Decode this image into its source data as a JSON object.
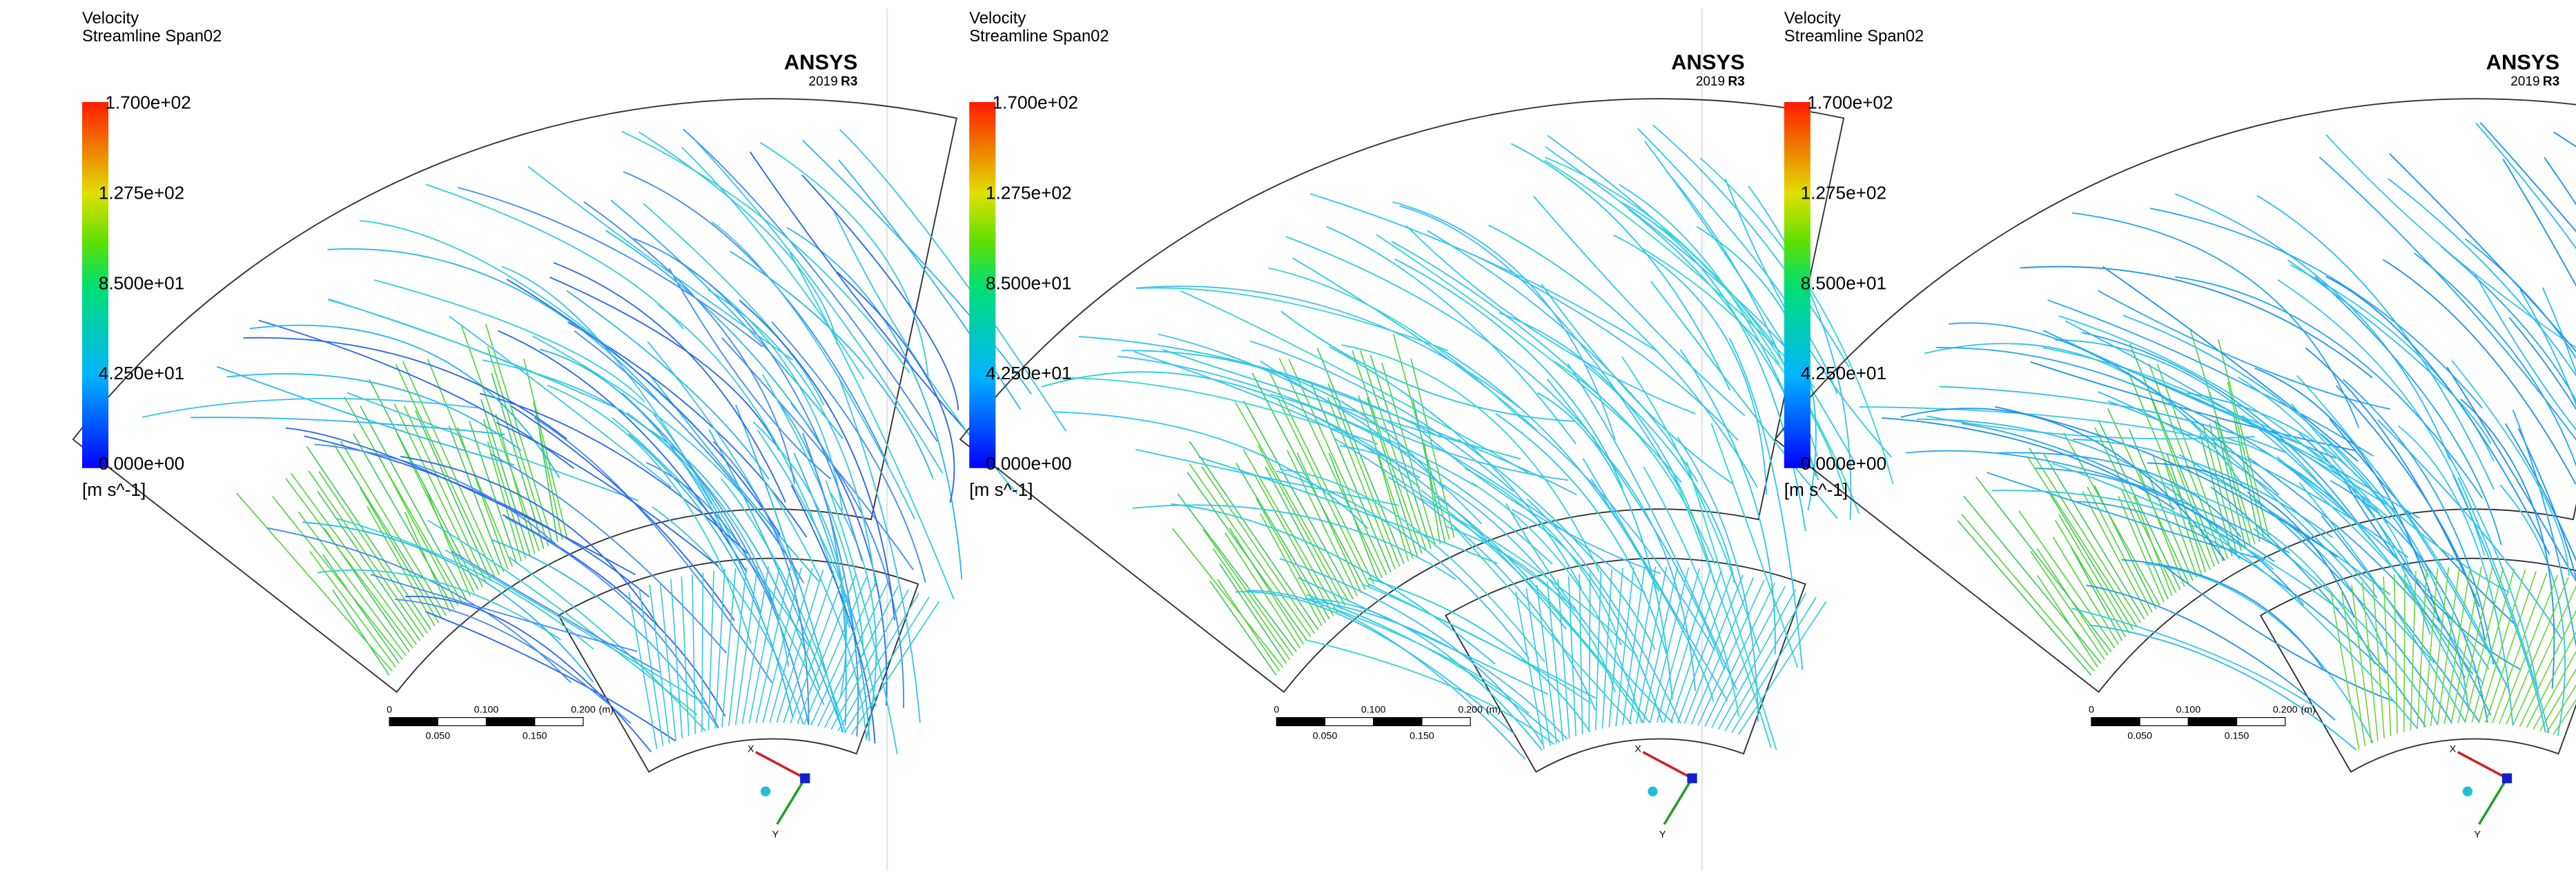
{
  "panels": [
    {
      "legend": {
        "title": "Velocity",
        "subtitle": "Streamline Span02",
        "ticks": [
          "1.700e+02",
          "1.275e+02",
          "8.500e+01",
          "4.250e+01",
          "0.000e+00"
        ],
        "units": "[m s^-1]"
      },
      "logo": {
        "brand": "ANSYS",
        "year": "2019",
        "release": "R3"
      },
      "scale": {
        "top": [
          "0",
          "0.100",
          "0.200",
          "(m)"
        ],
        "bottom": [
          "0.050",
          "0.150"
        ]
      },
      "triad": {
        "x": "X",
        "y": "Y"
      }
    },
    {
      "legend": {
        "title": "Velocity",
        "subtitle": "Streamline Span02",
        "ticks": [
          "1.700e+02",
          "1.275e+02",
          "8.500e+01",
          "4.250e+01",
          "0.000e+00"
        ],
        "units": "[m s^-1]"
      },
      "logo": {
        "brand": "ANSYS",
        "year": "2019",
        "release": "R3"
      },
      "scale": {
        "top": [
          "0",
          "0.100",
          "0.200",
          "(m)"
        ],
        "bottom": [
          "0.050",
          "0.150"
        ]
      },
      "triad": {
        "x": "X",
        "y": "Y"
      }
    },
    {
      "legend": {
        "title": "Velocity",
        "subtitle": "Streamline Span02",
        "ticks": [
          "1.700e+02",
          "1.275e+02",
          "8.500e+01",
          "4.250e+01",
          "0.000e+00"
        ],
        "units": "[m s^-1]"
      },
      "logo": {
        "brand": "ANSYS",
        "year": "2019",
        "release": "R3"
      },
      "scale": {
        "top": [
          "0",
          "0.100",
          "0.200",
          "(m)"
        ],
        "bottom": [
          "0.050",
          "0.150"
        ]
      },
      "triad": {
        "x": "X",
        "y": "Y"
      }
    }
  ]
}
